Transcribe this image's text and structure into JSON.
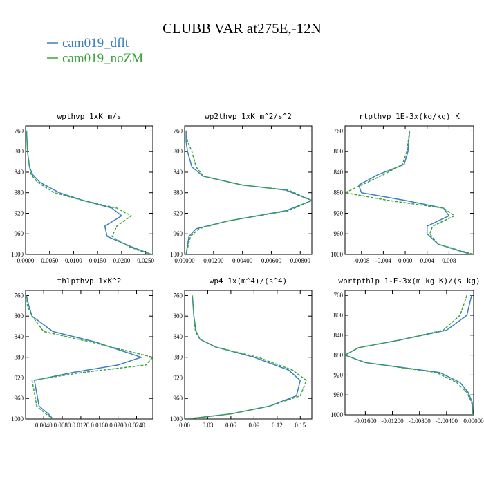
{
  "figure": {
    "title": "CLUBB VAR at275E,-12N",
    "legend": [
      {
        "name": "cam019_dflt",
        "color": "#3a7fc0",
        "dash": "solid"
      },
      {
        "name": "cam019_noZM",
        "color": "#3aa43a",
        "dash": "dashed"
      }
    ]
  },
  "chart_data": [
    {
      "type": "line",
      "title": "wpthvp  1xK m/s",
      "xlim": [
        0,
        0.0265
      ],
      "ylim": [
        1000,
        750
      ],
      "xticks": [
        0,
        0.005,
        0.01,
        0.015,
        0.02,
        0.025
      ],
      "xtick_labels": [
        "0.0000",
        "0.0050",
        "0.0100",
        "0.0150",
        "0.0200",
        "0.0250"
      ],
      "yticks": [
        760,
        800,
        840,
        880,
        920,
        960,
        1000
      ],
      "series": [
        {
          "name": "cam019_dflt",
          "x": [
            0.0002,
            0.0004,
            0.0008,
            0.0015,
            0.003,
            0.007,
            0.012,
            0.018,
            0.02,
            0.0165,
            0.017,
            0.022,
            0.0262
          ],
          "y": [
            760,
            800,
            830,
            845,
            860,
            880,
            895,
            910,
            925,
            945,
            965,
            985,
            1000
          ]
        },
        {
          "name": "cam019_noZM",
          "x": [
            0.0002,
            0.0004,
            0.0008,
            0.0012,
            0.0025,
            0.006,
            0.012,
            0.019,
            0.022,
            0.019,
            0.018,
            0.0215,
            0.026
          ],
          "y": [
            760,
            800,
            830,
            845,
            860,
            880,
            895,
            910,
            925,
            945,
            965,
            985,
            1000
          ]
        }
      ]
    },
    {
      "type": "line",
      "title": "wp2thvp  1xK m^2/s^2",
      "xlim": [
        0,
        0.0088
      ],
      "ylim": [
        1000,
        750
      ],
      "xticks": [
        0,
        0.002,
        0.004,
        0.006,
        0.008
      ],
      "xtick_labels": [
        "0.00000",
        "0.00200",
        "0.00400",
        "0.00600",
        "0.00800"
      ],
      "yticks": [
        760,
        800,
        840,
        880,
        920,
        960,
        1000
      ],
      "series": [
        {
          "name": "cam019_dflt",
          "x": [
            0.0001,
            0.0001,
            0.0002,
            0.0005,
            0.0013,
            0.004,
            0.007,
            0.0088,
            0.007,
            0.003,
            0.0008,
            0.0003,
            0.0001
          ],
          "y": [
            760,
            780,
            800,
            830,
            848,
            865,
            875,
            895,
            915,
            935,
            950,
            965,
            1000
          ]
        },
        {
          "name": "cam019_noZM",
          "x": [
            0.0001,
            0.0002,
            0.0005,
            0.0008,
            0.0013,
            0.004,
            0.0072,
            0.0088,
            0.0072,
            0.003,
            0.001,
            0.0004,
            0.0001
          ],
          "y": [
            760,
            780,
            800,
            830,
            848,
            865,
            875,
            895,
            915,
            935,
            950,
            965,
            1000
          ]
        }
      ]
    },
    {
      "type": "line",
      "title": "rtpthvp  1E-3x(kg/kg) K",
      "xlim": [
        -0.011,
        0.0125
      ],
      "ylim": [
        1000,
        750
      ],
      "xticks": [
        -0.008,
        -0.004,
        0.0,
        0.004,
        0.008
      ],
      "xtick_labels": [
        "-0.008",
        "-0.004",
        "0.000",
        "0.004",
        "0.008"
      ],
      "yticks": [
        760,
        800,
        840,
        880,
        920,
        960,
        1000
      ],
      "series": [
        {
          "name": "cam019_dflt",
          "x": [
            0.0008,
            0.0005,
            -0.0002,
            -0.005,
            -0.0085,
            -0.008,
            0.0,
            0.007,
            0.008,
            0.004,
            0.004,
            0.006,
            0.012
          ],
          "y": [
            760,
            800,
            825,
            845,
            865,
            880,
            895,
            910,
            925,
            945,
            960,
            980,
            1000
          ]
        },
        {
          "name": "cam019_noZM",
          "x": [
            0.0008,
            0.0003,
            -0.0005,
            -0.004,
            -0.008,
            -0.011,
            -0.003,
            0.007,
            0.009,
            0.005,
            0.0045,
            0.006,
            0.0125
          ],
          "y": [
            760,
            800,
            825,
            845,
            865,
            880,
            895,
            910,
            925,
            945,
            960,
            980,
            1000
          ]
        }
      ]
    },
    {
      "type": "line",
      "title": "thlpthvp  1xK^2",
      "xlim": [
        0.0001,
        0.0275
      ],
      "ylim": [
        1000,
        750
      ],
      "xticks": [
        0.004,
        0.008,
        0.012,
        0.016,
        0.02,
        0.024
      ],
      "xtick_labels": [
        "0.0040",
        "0.0080",
        "0.0120",
        "0.0160",
        "0.0200",
        "0.0240"
      ],
      "yticks": [
        760,
        800,
        840,
        880,
        920,
        960,
        1000
      ],
      "series": [
        {
          "name": "cam019_dflt",
          "x": [
            0.0003,
            0.0008,
            0.0015,
            0.006,
            0.015,
            0.025,
            0.02,
            0.01,
            0.002,
            0.0025,
            0.003,
            0.005,
            0.006
          ],
          "y": [
            760,
            780,
            800,
            830,
            850,
            880,
            895,
            910,
            925,
            950,
            975,
            990,
            1000
          ]
        },
        {
          "name": "cam019_noZM",
          "x": [
            0.0003,
            0.0005,
            0.0015,
            0.004,
            0.014,
            0.0275,
            0.026,
            0.012,
            0.0015,
            0.002,
            0.0025,
            0.0045,
            0.006
          ],
          "y": [
            760,
            780,
            800,
            830,
            850,
            880,
            895,
            910,
            925,
            950,
            975,
            990,
            1000
          ]
        }
      ]
    },
    {
      "type": "line",
      "title": "wp4  1x(m^4)/(s^4)",
      "xlim": [
        0,
        0.165
      ],
      "ylim": [
        1000,
        750
      ],
      "xticks": [
        0.0,
        0.03,
        0.06,
        0.09,
        0.12,
        0.15
      ],
      "xtick_labels": [
        "0.00",
        "0.03",
        "0.06",
        "0.09",
        "0.12",
        "0.15"
      ],
      "yticks": [
        760,
        800,
        840,
        880,
        920,
        960,
        1000
      ],
      "series": [
        {
          "name": "cam019_dflt",
          "x": [
            0.01,
            0.012,
            0.015,
            0.02,
            0.04,
            0.09,
            0.135,
            0.15,
            0.145,
            0.11,
            0.06,
            0.02,
            0.003
          ],
          "y": [
            760,
            800,
            830,
            845,
            860,
            880,
            905,
            925,
            955,
            975,
            990,
            997,
            1000
          ]
        },
        {
          "name": "cam019_noZM",
          "x": [
            0.01,
            0.012,
            0.014,
            0.02,
            0.04,
            0.095,
            0.14,
            0.158,
            0.15,
            0.11,
            0.06,
            0.02,
            0.003
          ],
          "y": [
            760,
            800,
            830,
            845,
            860,
            880,
            905,
            925,
            955,
            975,
            990,
            997,
            1000
          ]
        }
      ]
    },
    {
      "type": "line",
      "title": "wprtpthlp  1-E-3x(m kg K)/(s kg)",
      "xlim": [
        -0.019,
        0.0
      ],
      "ylim": [
        1000,
        750
      ],
      "xticks": [
        -0.016,
        -0.012,
        -0.008,
        -0.004,
        0.0
      ],
      "xtick_labels": [
        "-0.01600",
        "-0.01200",
        "-0.00800",
        "-0.00400",
        "0.00000"
      ],
      "yticks": [
        760,
        800,
        840,
        880,
        920,
        960,
        1000
      ],
      "series": [
        {
          "name": "cam019_dflt",
          "x": [
            -0.0003,
            -0.001,
            -0.004,
            -0.011,
            -0.017,
            -0.019,
            -0.016,
            -0.005,
            -0.002,
            -0.0008,
            -0.0002,
            -0.0001
          ],
          "y": [
            760,
            800,
            830,
            850,
            865,
            880,
            895,
            915,
            935,
            955,
            975,
            1000
          ]
        },
        {
          "name": "cam019_noZM",
          "x": [
            -0.001,
            -0.002,
            -0.0045,
            -0.011,
            -0.017,
            -0.019,
            -0.016,
            -0.0055,
            -0.0025,
            -0.001,
            -0.0003,
            -0.0001
          ],
          "y": [
            760,
            800,
            830,
            850,
            865,
            880,
            895,
            915,
            935,
            955,
            975,
            1000
          ]
        }
      ]
    }
  ]
}
